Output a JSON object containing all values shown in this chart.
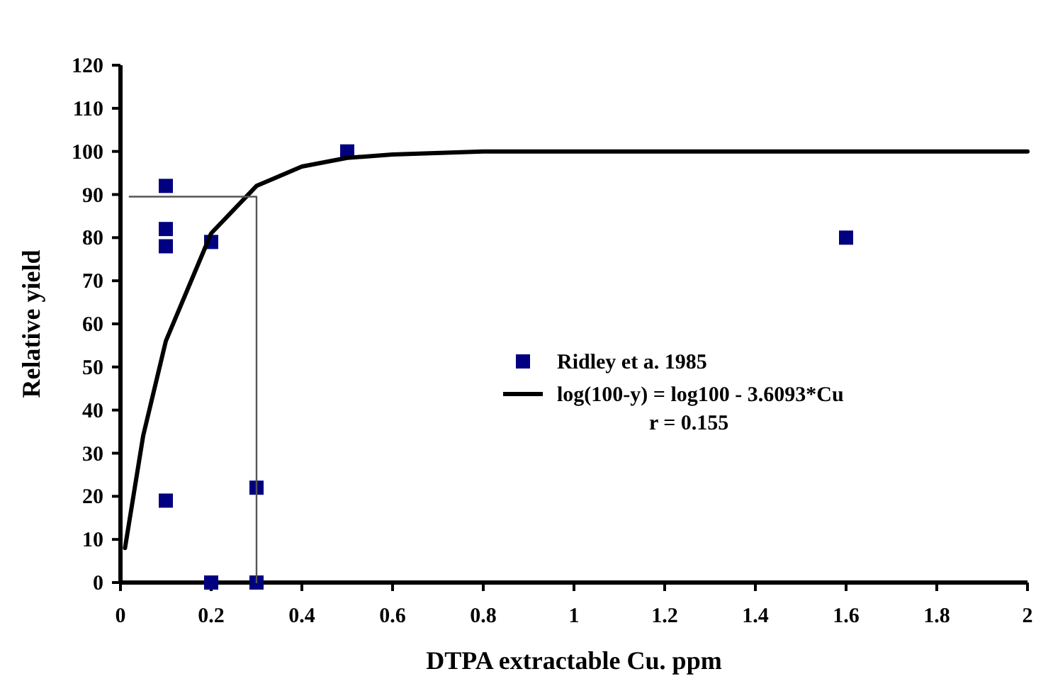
{
  "chart_data": {
    "type": "scatter",
    "xlabel": "DTPA extractable Cu. ppm",
    "ylabel": "Relative yield",
    "xlim": [
      0,
      2
    ],
    "xticks": [
      0,
      0.2,
      0.4,
      0.6,
      0.8,
      1,
      1.2,
      1.4,
      1.6,
      1.8,
      2
    ],
    "ylim": [
      0,
      120
    ],
    "yticks": [
      0,
      10,
      20,
      30,
      40,
      50,
      60,
      70,
      80,
      90,
      100,
      110,
      120
    ],
    "grid": false,
    "legend": "right",
    "marker": "square",
    "annotations": [
      "r = 0.155"
    ],
    "series": [
      {
        "name": "Ridley et a. 1985",
        "color": "#000080",
        "x": [
          0.1,
          0.1,
          0.1,
          0.1,
          0.2,
          0.2,
          0.3,
          0.3,
          0.5,
          1.6
        ],
        "values": [
          92,
          82,
          78,
          19,
          79,
          0,
          22,
          0,
          100,
          80
        ]
      },
      {
        "name": "log(100-y) = log100 - 3.6093*Cu",
        "type": "line",
        "color": "#000000",
        "marker": "none",
        "x": [
          0.01,
          0.05,
          0.1,
          0.2,
          0.3,
          0.4,
          0.5,
          0.6,
          0.8,
          1,
          2
        ],
        "values": [
          8,
          34,
          56,
          81,
          92,
          96.5,
          98.5,
          99.3,
          100,
          100,
          100
        ]
      },
      {
        "type": "line",
        "color": "#555555",
        "marker": "none",
        "x": [
          0.02,
          0.3,
          0.3
        ],
        "values": [
          89.5,
          89.5,
          0
        ]
      }
    ]
  }
}
